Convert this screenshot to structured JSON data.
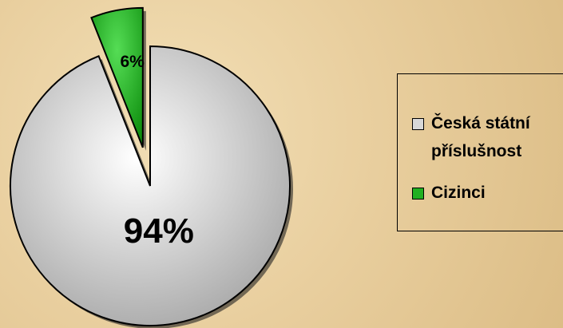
{
  "chart_data": {
    "type": "pie",
    "categories": [
      "Česká státní příslušnost",
      "Cizinci"
    ],
    "values": [
      94,
      6
    ],
    "value_labels": [
      "94%",
      "6%"
    ],
    "colors": [
      "#d8d8d8",
      "#22b022"
    ],
    "legend": "right"
  }
}
